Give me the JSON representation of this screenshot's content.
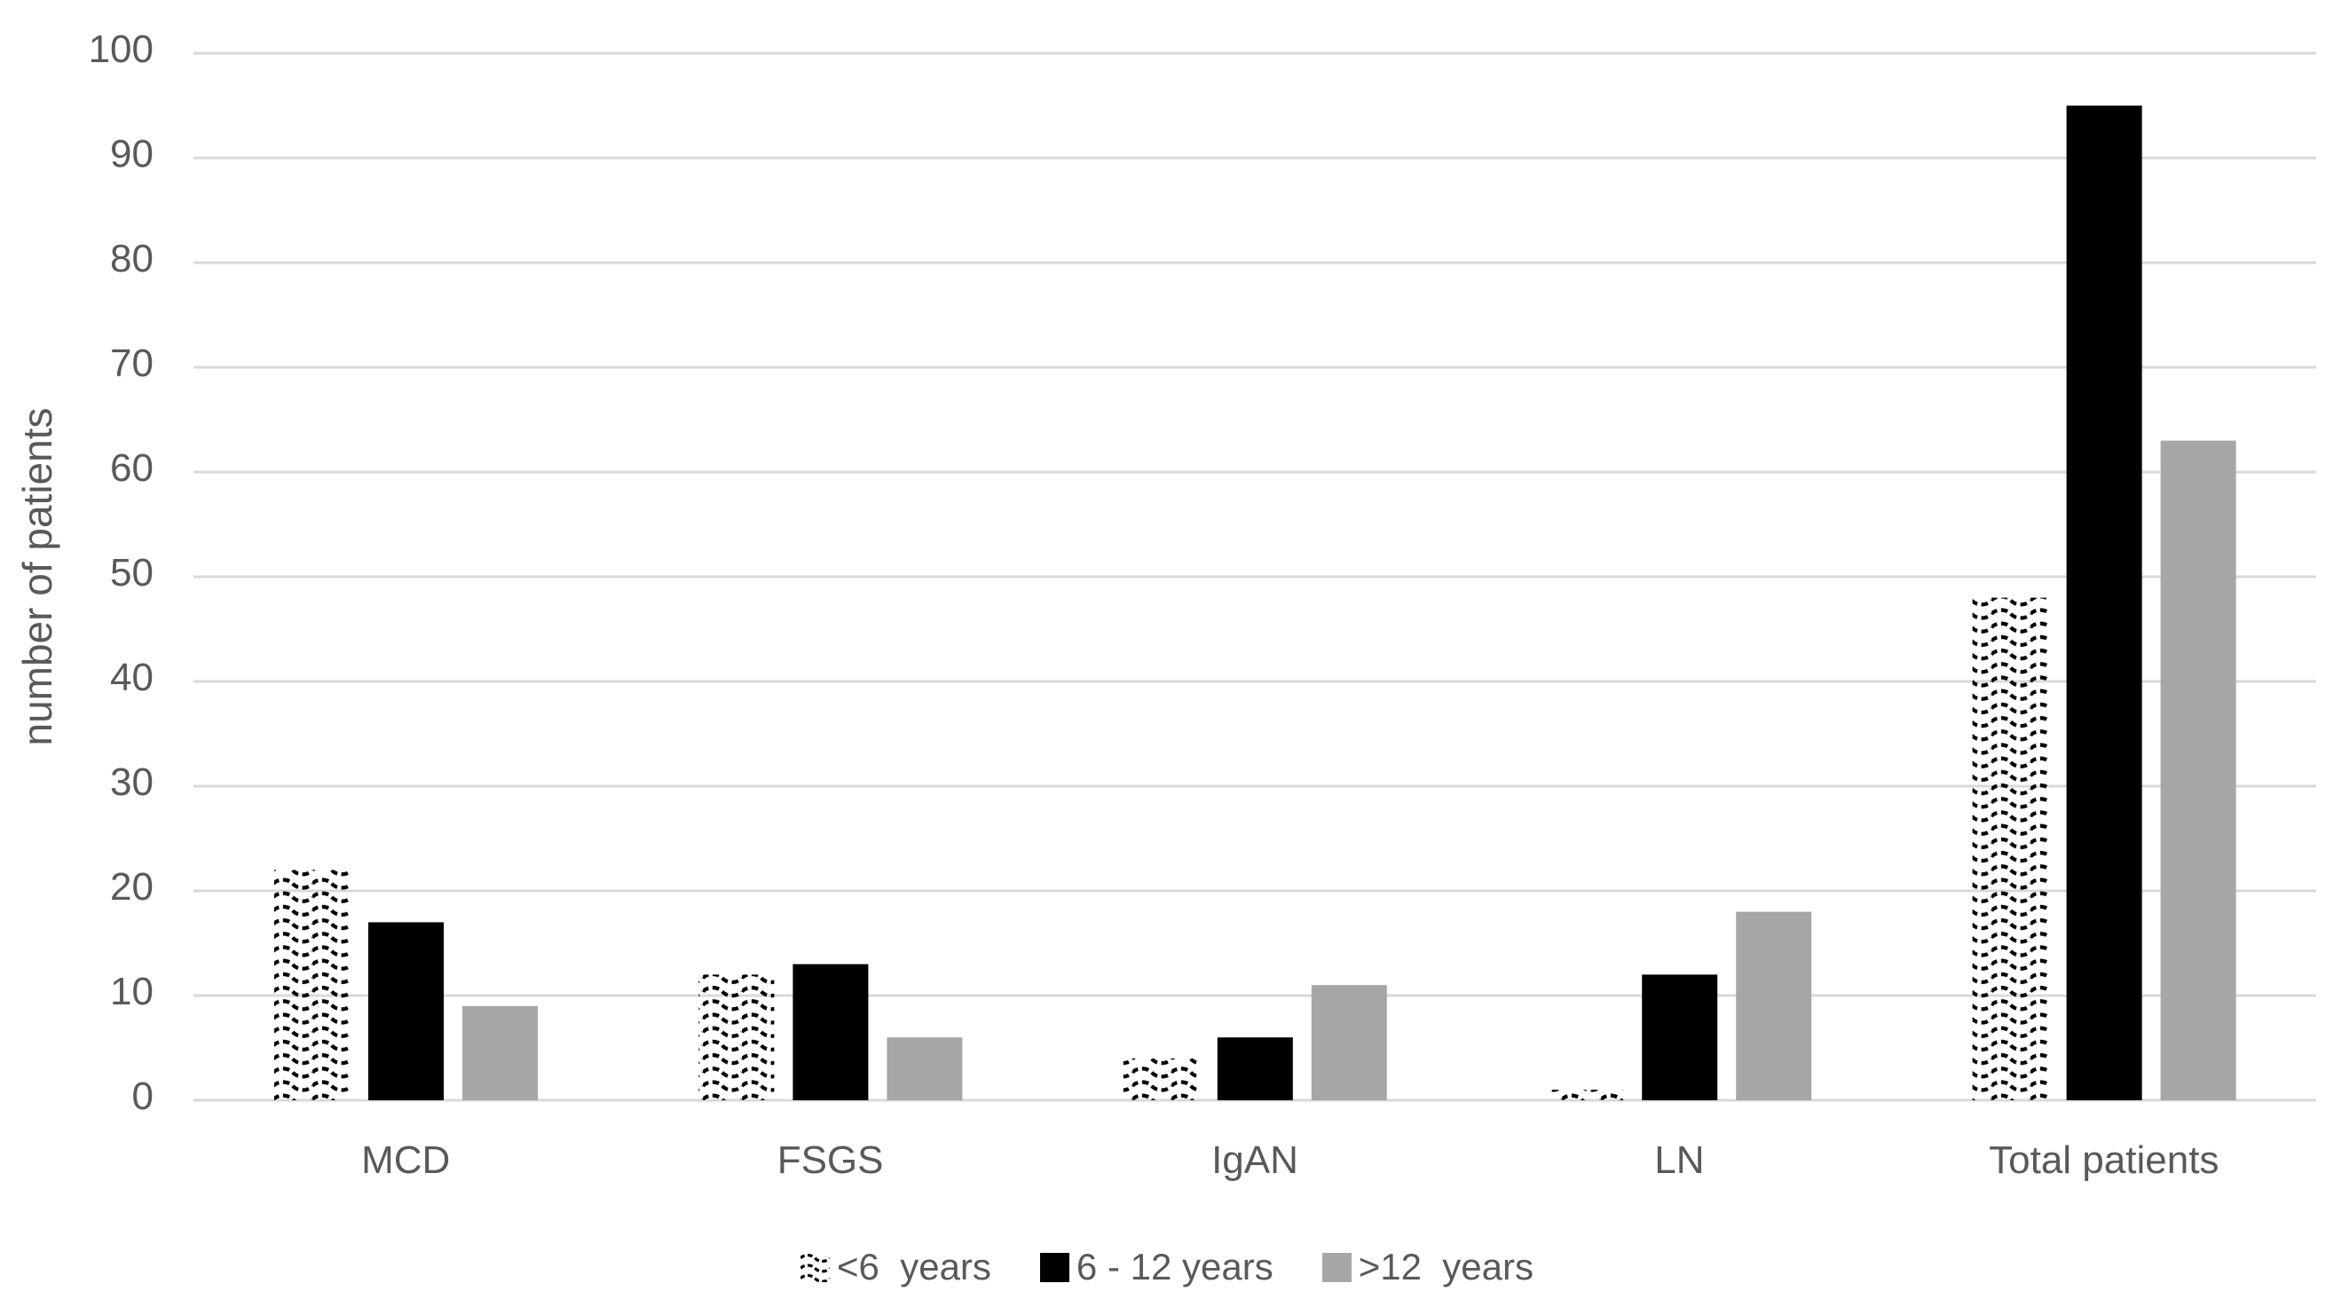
{
  "chart_data": {
    "type": "bar",
    "title": "",
    "xlabel": "",
    "ylabel": "number of patients",
    "ylim": [
      0,
      100
    ],
    "yticks": [
      0,
      10,
      20,
      30,
      40,
      50,
      60,
      70,
      80,
      90,
      100
    ],
    "grid": true,
    "legend_position": "bottom",
    "categories": [
      "MCD",
      "FSGS",
      "IgAN",
      "LN",
      "Total patients"
    ],
    "series": [
      {
        "name": "<6  years",
        "style": "wave-pattern",
        "color": "#000000",
        "values": [
          22,
          12,
          4,
          1,
          48
        ]
      },
      {
        "name": "6 - 12 years",
        "style": "solid",
        "color": "#000000",
        "values": [
          17,
          13,
          6,
          12,
          95
        ]
      },
      {
        "name": ">12  years",
        "style": "solid",
        "color": "#a6a6a6",
        "values": [
          9,
          6,
          11,
          18,
          63
        ]
      }
    ]
  },
  "colors": {
    "background": "#ffffff",
    "gridline": "#d9d9d9",
    "axis_line": "#d9d9d9",
    "text": "#595959",
    "bar_black": "#000000",
    "bar_gray": "#a6a6a6",
    "pattern_stroke": "#000000"
  }
}
